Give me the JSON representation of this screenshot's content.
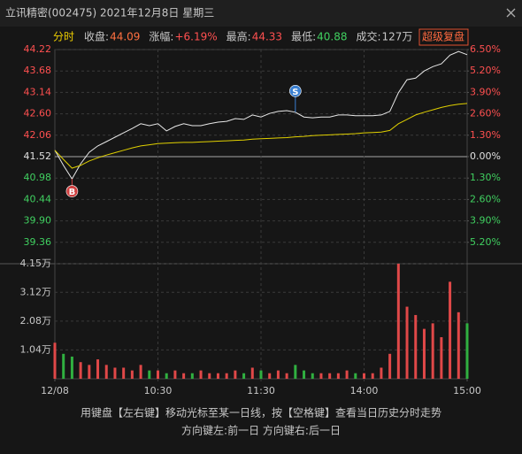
{
  "header": {
    "title": "立讯精密(002475) 2021年12月8日 星期三",
    "button": "超级复盘",
    "info": [
      {
        "label": "分时",
        "color": "#f0d000"
      },
      {
        "label": "收盘:",
        "value": "44.09",
        "color": "#ff7040"
      },
      {
        "label": "涨幅:",
        "value": "+6.19%",
        "color": "#ff5050"
      },
      {
        "label": "最高:",
        "value": "44.33",
        "color": "#ff5050"
      },
      {
        "label": "最低:",
        "value": "40.88",
        "color": "#40d060"
      },
      {
        "label": "成交:",
        "value": "127万",
        "color": "#c8c8c8"
      }
    ]
  },
  "footer": {
    "line1": "用键盘【左右键】移动光标至某一日线，按【空格键】查看当日历史分时走势",
    "line2": "方向键左:前一日    方向键右:后一日"
  },
  "chart_data": {
    "type": "line",
    "grid": true,
    "x": [
      0,
      5,
      10,
      15,
      20,
      25,
      30,
      35,
      40,
      45,
      50,
      55,
      60,
      65,
      70,
      75,
      80,
      85,
      90,
      95,
      100,
      105,
      110,
      115,
      120,
      125,
      130,
      135,
      140,
      145,
      150,
      155,
      160,
      165,
      170,
      175,
      180,
      185,
      190,
      195,
      200,
      205,
      210,
      215,
      220,
      225,
      230,
      235,
      240
    ],
    "xlim": [
      0,
      240
    ],
    "xticks": [
      {
        "value": 0,
        "label": "12/08"
      },
      {
        "value": 60,
        "label": "10:30"
      },
      {
        "value": 120,
        "label": "11:30"
      },
      {
        "value": 180,
        "label": "14:00"
      },
      {
        "value": 240,
        "label": "15:00"
      }
    ],
    "ylim": [
      38.82,
      44.22
    ],
    "yticks": [
      44.22,
      43.68,
      43.14,
      {
        "value": 42.6,
        "label": "42.60"
      },
      42.06,
      41.52,
      40.98,
      40.44,
      {
        "value": 39.9,
        "label": "39.90"
      },
      39.36
    ],
    "y2lim": [
      -6.5,
      6.5
    ],
    "y2ticks": [
      {
        "value": 6.5,
        "label": "6.50%"
      },
      {
        "value": 5.2,
        "label": "5.20%"
      },
      {
        "value": 3.9,
        "label": "3.90%"
      },
      {
        "value": 2.6,
        "label": "2.60%"
      },
      {
        "value": 1.3,
        "label": "1.30%"
      },
      {
        "value": 0,
        "label": "0.00%"
      },
      {
        "value": -1.3,
        "label": "1.30%"
      },
      {
        "value": -2.6,
        "label": "2.60%"
      },
      {
        "value": -3.9,
        "label": "3.90%"
      },
      {
        "value": -5.2,
        "label": "5.20%"
      }
    ],
    "series": [
      {
        "color": "#e8e8e8",
        "values": [
          41.68,
          41.3,
          40.96,
          41.34,
          41.63,
          41.79,
          41.9,
          42.01,
          42.12,
          42.23,
          42.35,
          42.3,
          42.35,
          42.17,
          42.28,
          42.35,
          42.3,
          42.3,
          42.35,
          42.39,
          42.41,
          42.48,
          42.46,
          42.57,
          42.52,
          42.61,
          42.66,
          42.68,
          42.64,
          42.52,
          42.5,
          42.52,
          42.52,
          42.57,
          42.57,
          42.55,
          42.55,
          42.55,
          42.57,
          42.66,
          43.13,
          43.46,
          43.5,
          43.68,
          43.79,
          43.86,
          44.08,
          44.17,
          44.09
        ]
      },
      {
        "color": "#e0d000",
        "values": [
          41.68,
          41.45,
          41.23,
          41.3,
          41.41,
          41.49,
          41.56,
          41.62,
          41.68,
          41.74,
          41.79,
          41.82,
          41.85,
          41.86,
          41.87,
          41.88,
          41.88,
          41.89,
          41.9,
          41.91,
          41.92,
          41.93,
          41.94,
          41.96,
          41.97,
          41.98,
          41.99,
          42.0,
          42.02,
          42.03,
          42.05,
          42.06,
          42.07,
          42.08,
          42.09,
          42.1,
          42.12,
          42.13,
          42.14,
          42.18,
          42.35,
          42.46,
          42.57,
          42.64,
          42.7,
          42.76,
          42.81,
          42.84,
          42.86
        ]
      }
    ],
    "volume": {
      "up_color": "#e04848",
      "down_color": "#30b040",
      "ylim": [
        0,
        4.15
      ],
      "yticks": [
        {
          "value": 4.15,
          "label": "4.15万"
        },
        {
          "value": 3.12,
          "label": "3.12万"
        },
        {
          "value": 2.08,
          "label": "2.08万"
        },
        {
          "value": 1.04,
          "label": "1.04万"
        }
      ],
      "values": [
        1.3,
        0.9,
        0.8,
        0.6,
        0.5,
        0.7,
        0.5,
        0.4,
        0.4,
        0.3,
        0.5,
        0.3,
        0.3,
        0.2,
        0.3,
        0.2,
        0.2,
        0.3,
        0.2,
        0.2,
        0.2,
        0.3,
        0.2,
        0.4,
        0.3,
        0.2,
        0.3,
        0.2,
        0.5,
        0.3,
        0.2,
        0.2,
        0.2,
        0.2,
        0.3,
        0.2,
        0.2,
        0.2,
        0.4,
        0.9,
        4.15,
        2.6,
        2.3,
        1.8,
        2.0,
        1.5,
        3.5,
        2.4,
        2.0
      ]
    },
    "markers": [
      {
        "label": "B",
        "x": 10,
        "y": 40.96,
        "color": "#d04040"
      },
      {
        "label": "S",
        "x": 140,
        "y": 42.64,
        "color": "#3a7fd0"
      }
    ]
  }
}
